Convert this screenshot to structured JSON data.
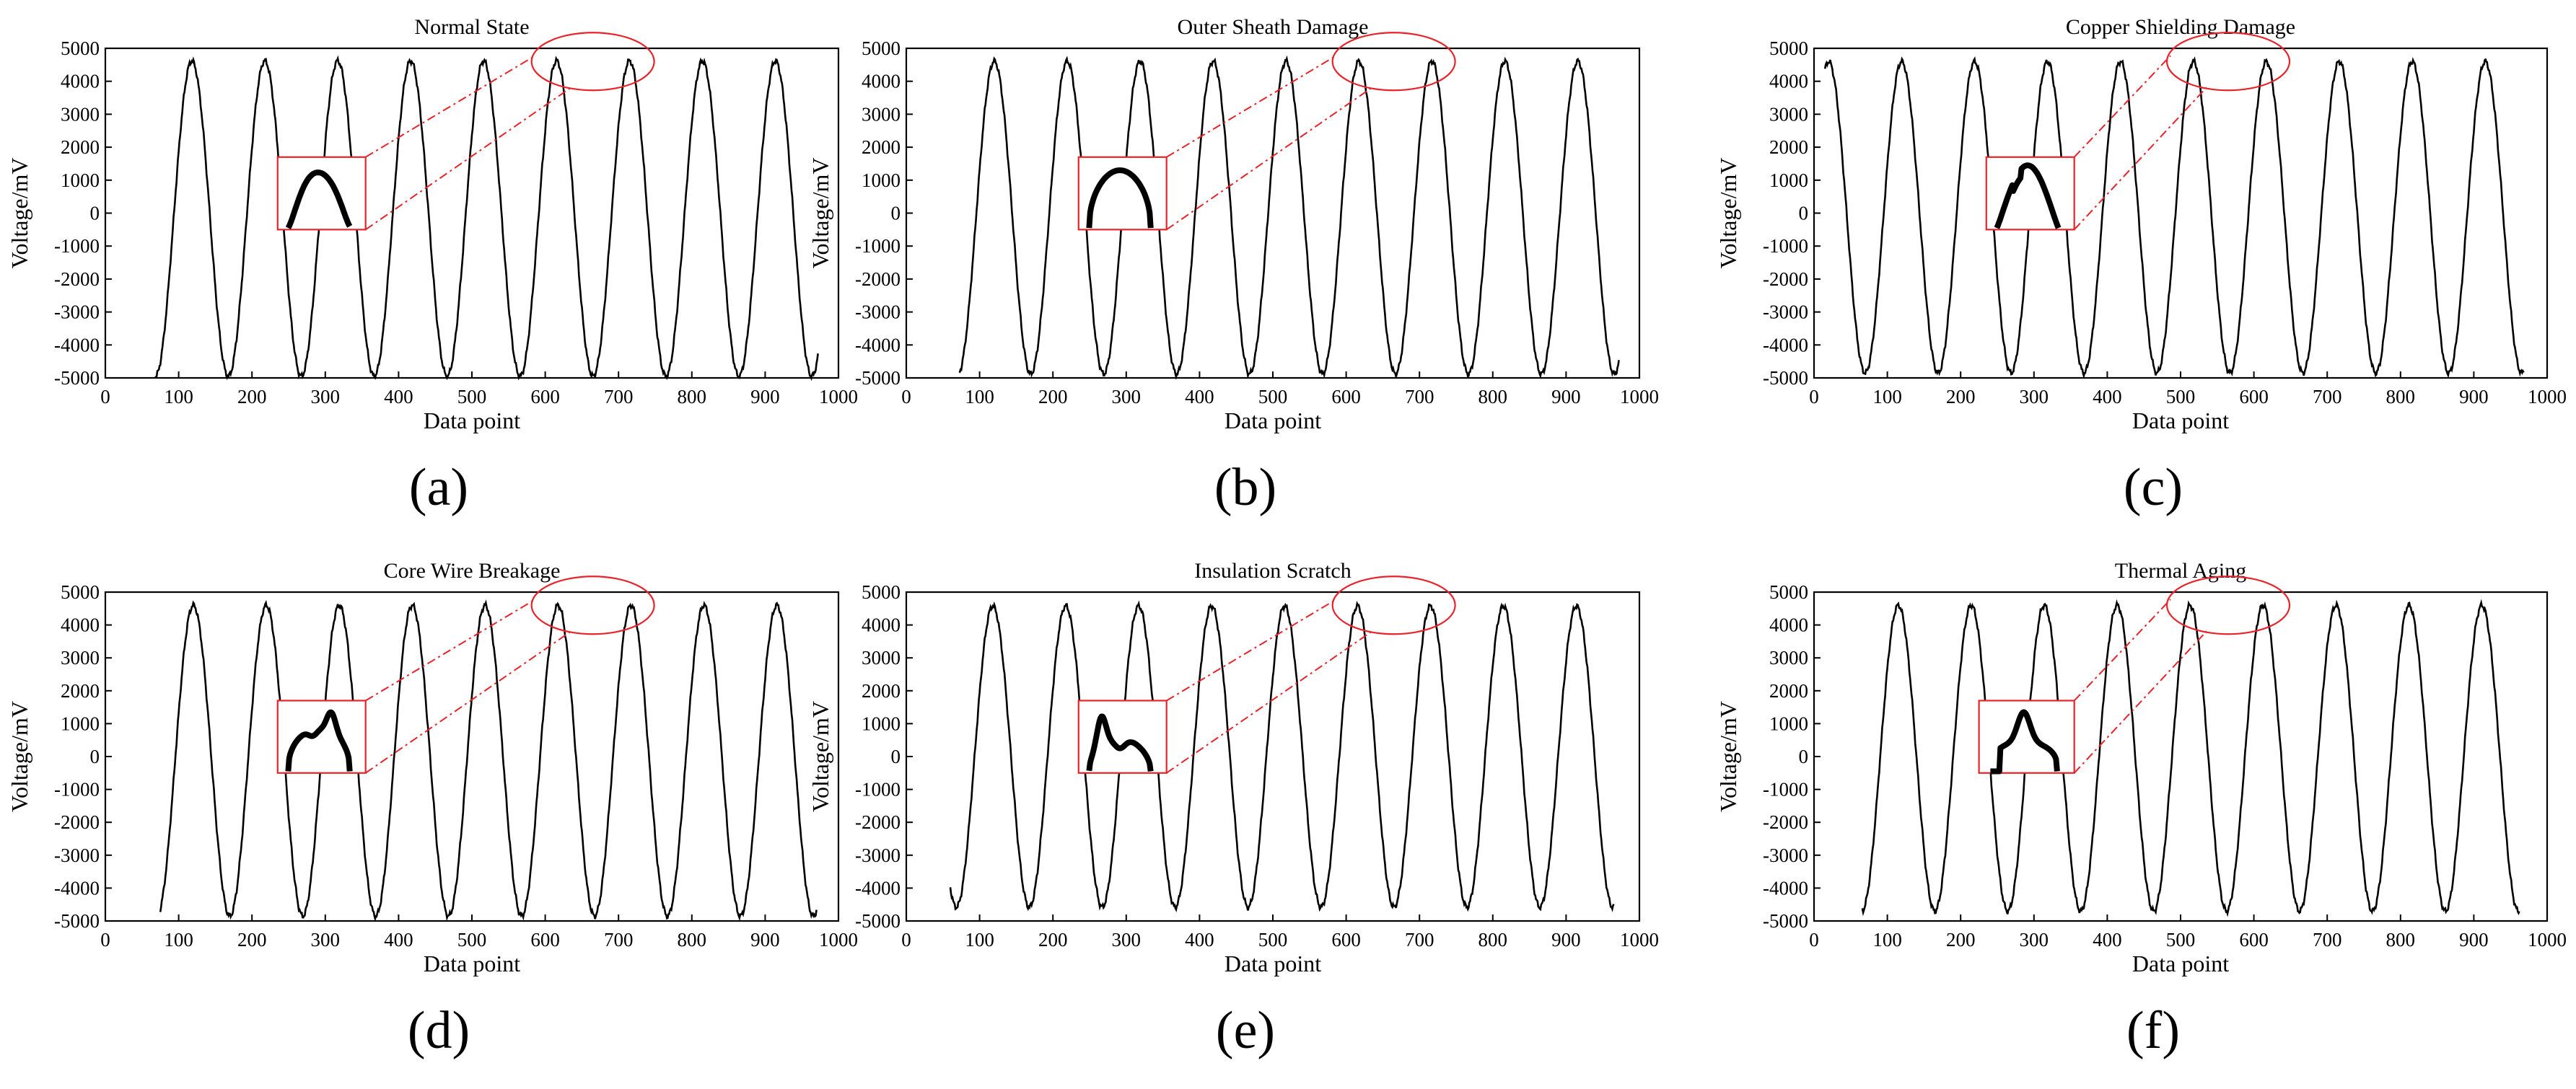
{
  "figure": {
    "panel_labels": [
      "(a)",
      "(b)",
      "(c)",
      "(d)",
      "(e)",
      "(f)"
    ]
  },
  "chart_data": [
    {
      "type": "line",
      "title": "Normal State",
      "xlabel": "Data point",
      "ylabel": "Voltage/mV",
      "xlim": [
        0,
        1000
      ],
      "ylim": [
        -5000,
        5000
      ],
      "xticks": [
        0,
        100,
        200,
        300,
        400,
        500,
        600,
        700,
        800,
        900,
        1000
      ],
      "yticks": [
        5000,
        4000,
        3000,
        2000,
        1000,
        0,
        -1000,
        -2000,
        -3000,
        -4000,
        -5000
      ],
      "series": [
        {
          "name": "voltage",
          "x_start": 68,
          "x_end": 972,
          "period": 99.5,
          "first_peak": 118,
          "peak": 4620,
          "trough": -4950
        }
      ],
      "zoom_inset": {
        "target_peak_x": 665,
        "inset_x_range": [
          235,
          355
        ],
        "inset_y_range": [
          -500,
          1700
        ],
        "shape": "single smooth peak"
      }
    },
    {
      "type": "line",
      "title": "Outer Sheath Damage",
      "xlabel": "Data point",
      "ylabel": "Voltage/mV",
      "xlim": [
        0,
        1000
      ],
      "ylim": [
        -5000,
        5000
      ],
      "xticks": [
        0,
        100,
        200,
        300,
        400,
        500,
        600,
        700,
        800,
        900,
        1000
      ],
      "yticks": [
        5000,
        4000,
        3000,
        2000,
        1000,
        0,
        -1000,
        -2000,
        -3000,
        -4000,
        -5000
      ],
      "series": [
        {
          "name": "voltage",
          "x_start": 72,
          "x_end": 972,
          "period": 99.5,
          "first_peak": 120,
          "peak": 4610,
          "trough": -4880
        }
      ],
      "zoom_inset": {
        "target_peak_x": 665,
        "inset_x_range": [
          235,
          355
        ],
        "inset_y_range": [
          -500,
          1700
        ],
        "shape": "flattened peak"
      }
    },
    {
      "type": "line",
      "title": "Copper Shielding Damage",
      "xlabel": "Data point",
      "ylabel": "Voltage/mV",
      "xlim": [
        0,
        1000
      ],
      "ylim": [
        -5000,
        5000
      ],
      "xticks": [
        0,
        100,
        200,
        300,
        400,
        500,
        600,
        700,
        800,
        900,
        1000
      ],
      "yticks": [
        5000,
        4000,
        3000,
        2000,
        1000,
        0,
        -1000,
        -2000,
        -3000,
        -4000,
        -5000
      ],
      "series": [
        {
          "name": "voltage",
          "x_start": 15,
          "x_end": 968,
          "period": 99.5,
          "first_peak": 20,
          "peak": 4600,
          "trough": -4850
        }
      ],
      "zoom_inset": {
        "target_peak_x": 565,
        "inset_x_range": [
          235,
          355
        ],
        "inset_y_range": [
          -500,
          1700
        ],
        "shape": "peak with kink"
      }
    },
    {
      "type": "line",
      "title": "Core Wire Breakage",
      "xlabel": "Data point",
      "ylabel": "Voltage/mV",
      "xlim": [
        0,
        1000
      ],
      "ylim": [
        -5000,
        5000
      ],
      "xticks": [
        0,
        100,
        200,
        300,
        400,
        500,
        600,
        700,
        800,
        900,
        1000
      ],
      "yticks": [
        5000,
        4000,
        3000,
        2000,
        1000,
        0,
        -1000,
        -2000,
        -3000,
        -4000,
        -5000
      ],
      "series": [
        {
          "name": "voltage",
          "x_start": 75,
          "x_end": 970,
          "period": 99.5,
          "first_peak": 120,
          "peak": 4600,
          "trough": -4850
        }
      ],
      "zoom_inset": {
        "target_peak_x": 665,
        "inset_x_range": [
          235,
          355
        ],
        "inset_y_range": [
          -500,
          1700
        ],
        "shape": "double hump"
      }
    },
    {
      "type": "line",
      "title": "Insulation Scratch",
      "xlabel": "Data point",
      "ylabel": "Voltage/mV",
      "xlim": [
        0,
        1000
      ],
      "ylim": [
        -5000,
        5000
      ],
      "xticks": [
        0,
        100,
        200,
        300,
        400,
        500,
        600,
        700,
        800,
        900,
        1000
      ],
      "yticks": [
        5000,
        4000,
        3000,
        2000,
        1000,
        0,
        -1000,
        -2000,
        -3000,
        -4000,
        -5000
      ],
      "series": [
        {
          "name": "voltage",
          "x_start": 60,
          "x_end": 965,
          "period": 99.5,
          "first_peak": 118,
          "peak": 4580,
          "trough": -4580
        }
      ],
      "zoom_inset": {
        "target_peak_x": 665,
        "inset_x_range": [
          235,
          355
        ],
        "inset_y_range": [
          -500,
          1700
        ],
        "shape": "double hump, left higher"
      }
    },
    {
      "type": "line",
      "title": "Thermal Aging",
      "xlabel": "Data point",
      "ylabel": "Voltage/mV",
      "xlim": [
        0,
        1000
      ],
      "ylim": [
        -5000,
        5000
      ],
      "xticks": [
        0,
        100,
        200,
        300,
        400,
        500,
        600,
        700,
        800,
        900,
        1000
      ],
      "yticks": [
        5000,
        4000,
        3000,
        2000,
        1000,
        0,
        -1000,
        -2000,
        -3000,
        -4000,
        -5000
      ],
      "series": [
        {
          "name": "voltage",
          "x_start": 65,
          "x_end": 962,
          "period": 99.5,
          "first_peak": 115,
          "peak": 4600,
          "trough": -4700
        }
      ],
      "zoom_inset": {
        "target_peak_x": 565,
        "inset_x_range": [
          225,
          355
        ],
        "inset_y_range": [
          -500,
          1700
        ],
        "shape": "stepped peak"
      }
    }
  ],
  "colors": {
    "line": "#000000",
    "zoom": "#e8232a",
    "axis": "#000000"
  }
}
